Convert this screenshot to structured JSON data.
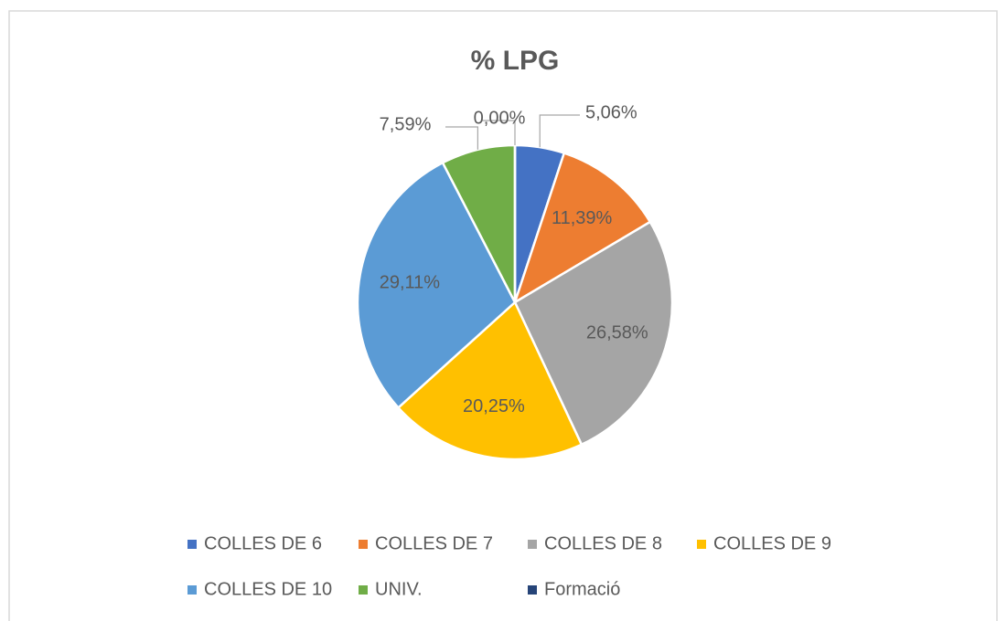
{
  "chart_data": {
    "type": "pie",
    "title": "% LPG",
    "categories": [
      "COLLES DE 6",
      "COLLES DE 7",
      "COLLES DE 8",
      "COLLES DE 9",
      "COLLES DE 10",
      "UNIV.",
      "Formació"
    ],
    "values": [
      5.06,
      11.39,
      26.58,
      20.25,
      29.11,
      7.59,
      0.0
    ],
    "value_labels": [
      "5,06%",
      "11,39%",
      "26,58%",
      "20,25%",
      "29,11%",
      "7,59%",
      "0,00%"
    ],
    "colors": [
      "#4472c4",
      "#ed7d31",
      "#a5a5a5",
      "#ffc000",
      "#5b9bd5",
      "#70ad47",
      "#264478"
    ],
    "legend": "bottom"
  }
}
